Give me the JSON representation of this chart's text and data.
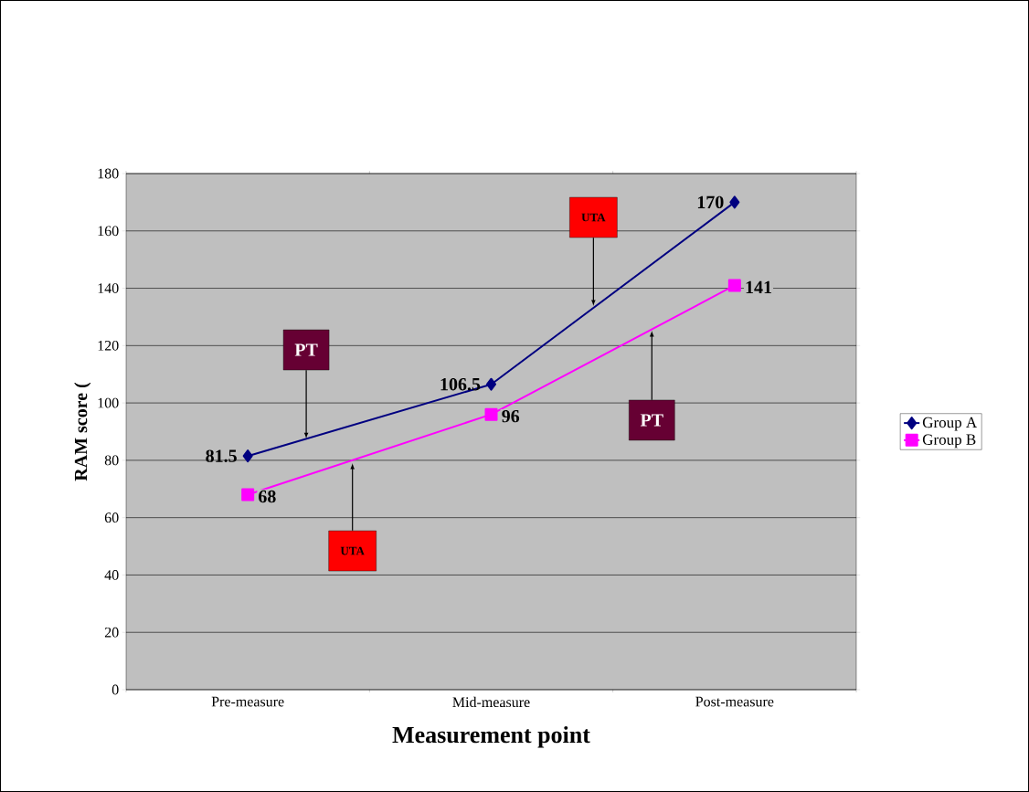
{
  "chart_data": {
    "type": "line",
    "xlabel": "Measurement point",
    "ylabel": "RAM score (",
    "categories": [
      "Pre-measure",
      "Mid-measure",
      "Post-measure"
    ],
    "series": [
      {
        "name": "Group A",
        "color": "#000080",
        "marker": "diamond",
        "values": [
          81.5,
          106.5,
          170
        ]
      },
      {
        "name": "Group B",
        "color": "#ff00ff",
        "marker": "square",
        "values": [
          68,
          96,
          141
        ]
      }
    ],
    "ylim": [
      0,
      180
    ],
    "yticks": [
      0,
      20,
      40,
      60,
      80,
      100,
      120,
      140,
      160,
      180
    ],
    "grid": "y",
    "legend": "right",
    "data_labels": true,
    "annotations": [
      {
        "text": "PT",
        "y": 87.6
      },
      "UTA",
      "UTA",
      {
        "text": "PT",
        "y": 125.2
      }
    ]
  }
}
